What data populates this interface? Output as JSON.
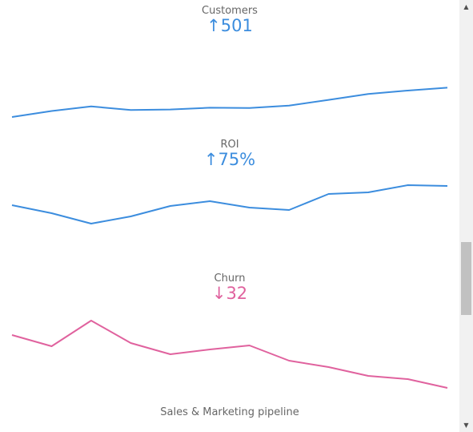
{
  "kpis": [
    {
      "title": "Customers",
      "arrow": "↑",
      "value": "501",
      "color": "#3c8dde",
      "trend": [
        0.0,
        0.075,
        0.132,
        0.088,
        0.094,
        0.116,
        0.113,
        0.143,
        0.214,
        0.288,
        0.33,
        0.366
      ]
    },
    {
      "title": "ROI",
      "arrow": "↑",
      "value": "75%",
      "color": "#3c8dde",
      "trend": [
        0.57,
        0.47,
        0.34,
        0.43,
        0.56,
        0.62,
        0.54,
        0.51,
        0.71,
        0.73,
        0.82,
        0.81
      ]
    },
    {
      "title": "Churn",
      "arrow": "↓",
      "value": "32",
      "color": "#e0629e",
      "trend": [
        0.62,
        0.48,
        0.8,
        0.52,
        0.38,
        0.44,
        0.49,
        0.3,
        0.22,
        0.11,
        0.07,
        -0.04
      ]
    }
  ],
  "footer": {
    "label": "Sales & Marketing pipeline"
  },
  "scrollbar": {
    "up_icon": "scroll-up-arrow-icon",
    "down_icon": "scroll-down-arrow-icon"
  }
}
